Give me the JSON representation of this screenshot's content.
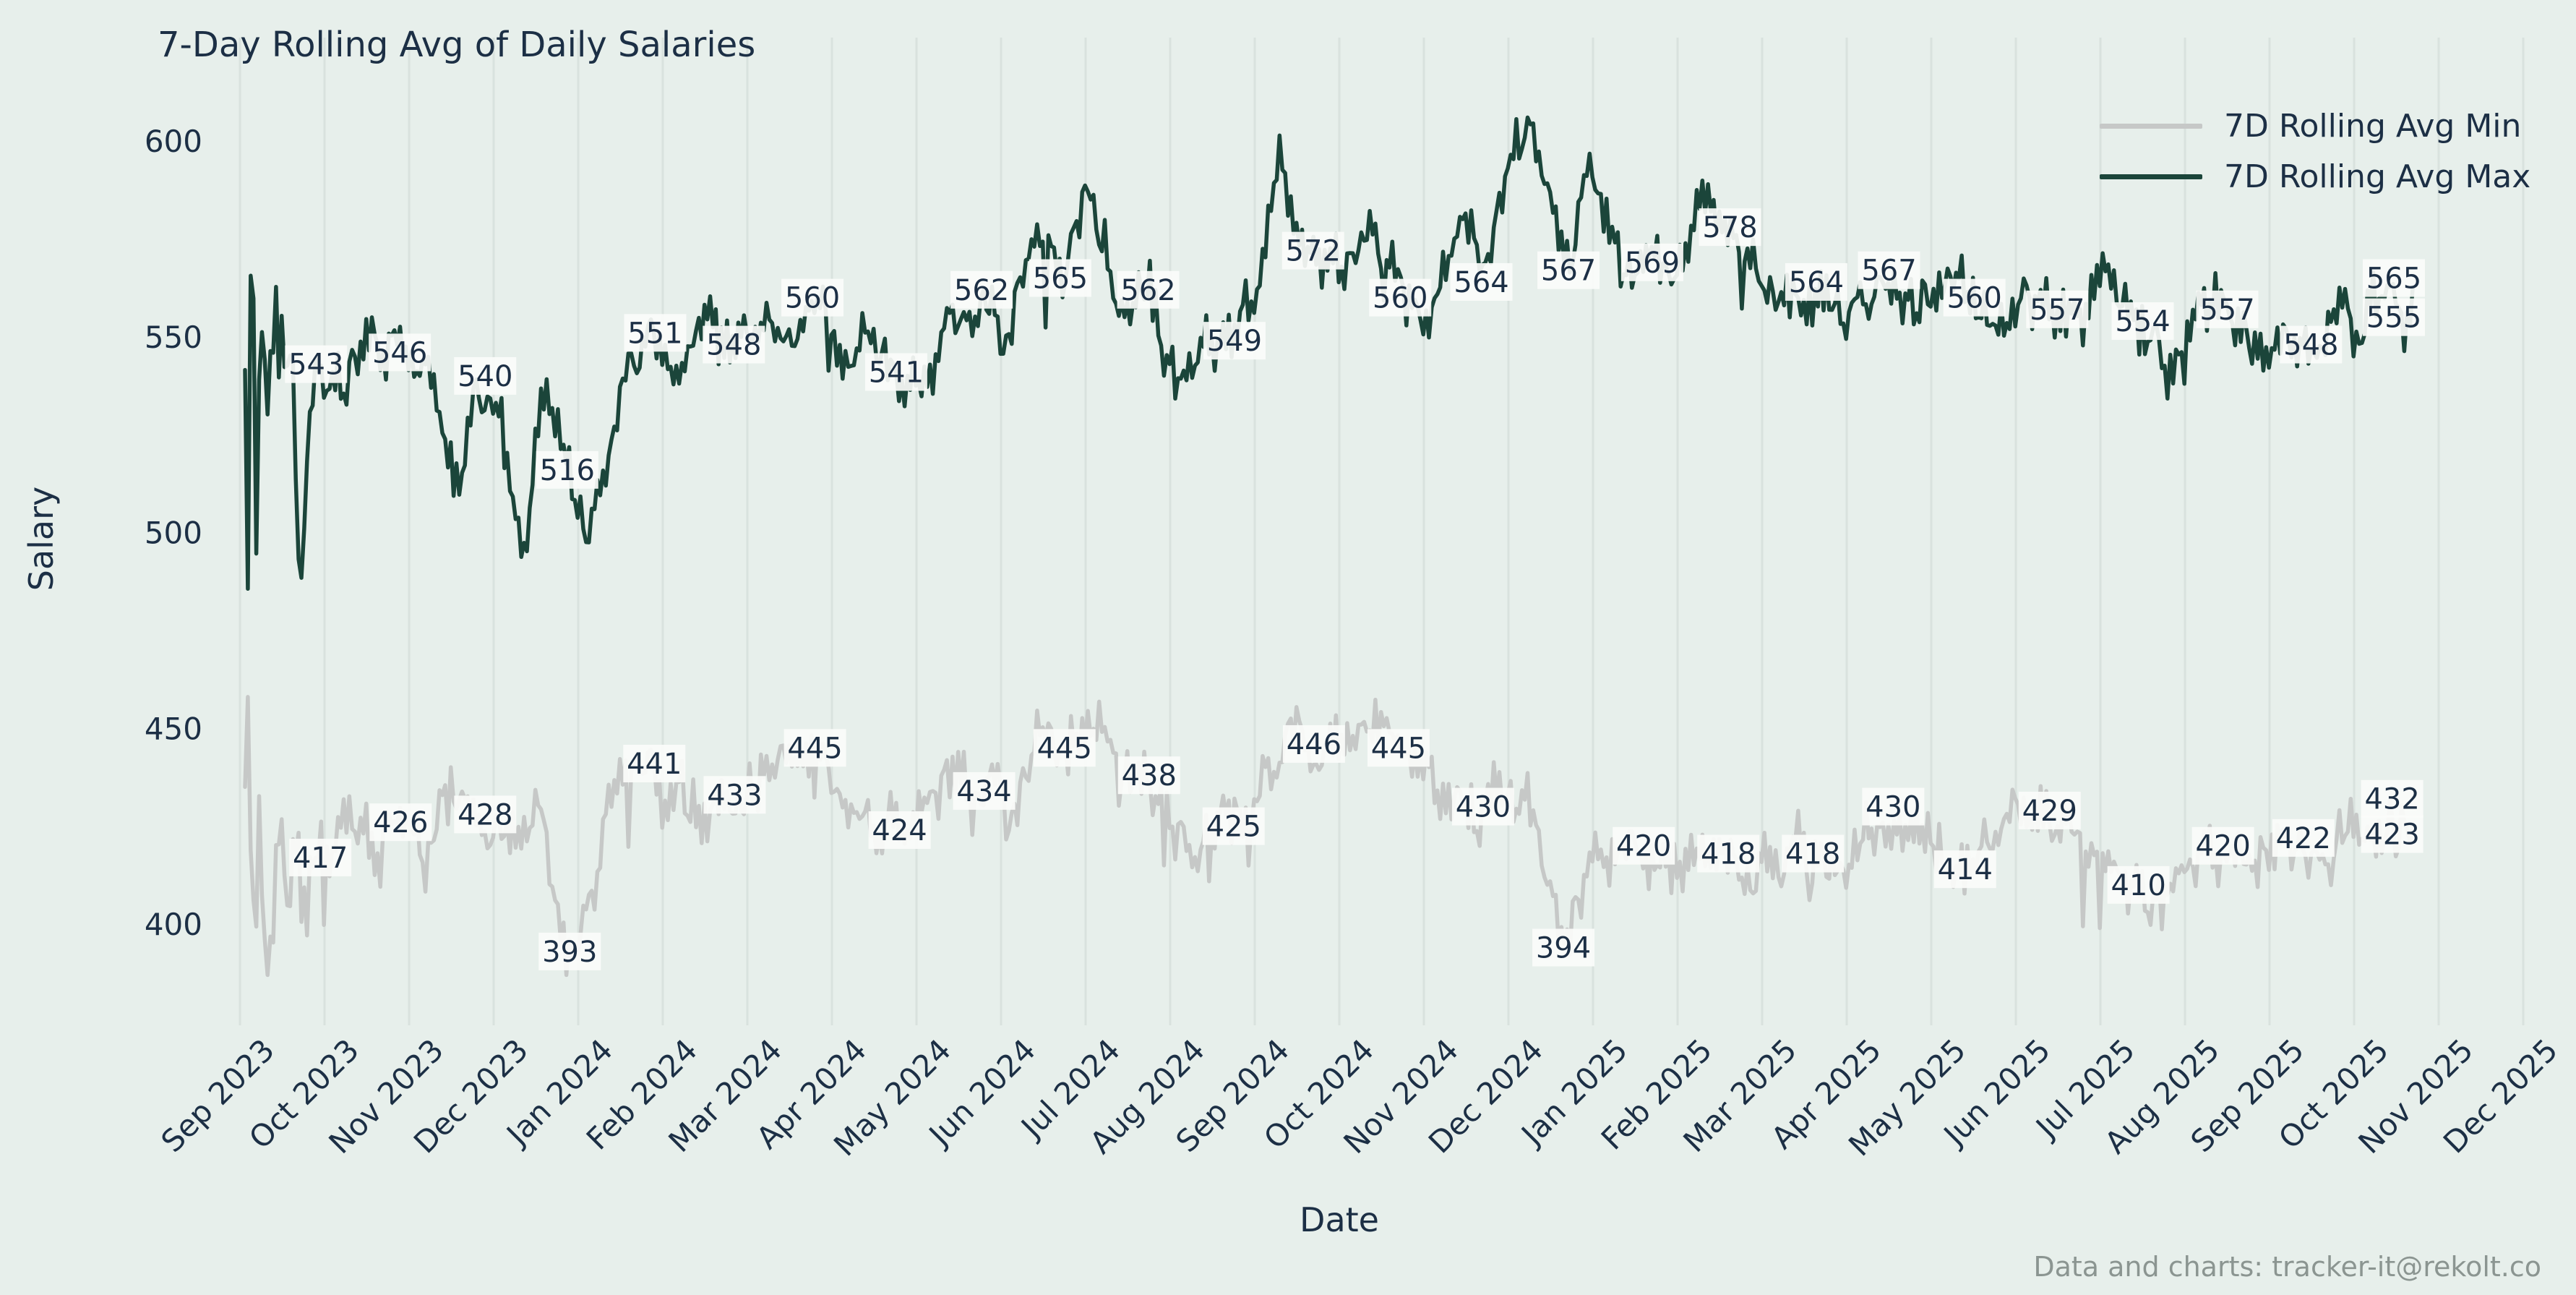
{
  "chart_data": {
    "type": "line",
    "title": "7-Day Rolling Avg of Daily Salaries",
    "xlabel": "Date",
    "ylabel": "Salary",
    "footer": "Data and charts: tracker-it@rekolt.co",
    "grid": "vertical-only",
    "background": "#e7efeb",
    "grid_color": "#d9e2de",
    "text_color": "#1c2f45",
    "annotation_bg": "#fbfcfa",
    "ylim": [
      383,
      612
    ],
    "y_ticks": [
      400,
      450,
      500,
      550,
      600
    ],
    "x_tick_labels": [
      "Sep 2023",
      "Oct 2023",
      "Nov 2023",
      "Dec 2023",
      "Jan 2024",
      "Feb 2024",
      "Mar 2024",
      "Apr 2024",
      "May 2024",
      "Jun 2024",
      "Jul 2024",
      "Aug 2024",
      "Sep 2024",
      "Oct 2024",
      "Nov 2024",
      "Dec 2024",
      "Jan 2025",
      "Feb 2025",
      "Mar 2025",
      "Apr 2025",
      "May 2025",
      "Jun 2025",
      "Jul 2025",
      "Aug 2025",
      "Sep 2025",
      "Oct 2025",
      "Nov 2025",
      "Dec 2025"
    ],
    "legend": {
      "position": "top-right",
      "entries": [
        {
          "label": "7D Rolling Avg Min",
          "color": "#c6c8c7"
        },
        {
          "label": "7D Rolling Avg Max",
          "color": "#1b453a"
        }
      ]
    },
    "series": [
      {
        "name": "7D Rolling Avg Min",
        "color": "#c6c8c7",
        "clamp": [
          387,
          458
        ],
        "point_labels": [
          [
            0.95,
            417
          ],
          [
            1.9,
            426
          ],
          [
            2.9,
            428
          ],
          [
            3.9,
            393
          ],
          [
            4.9,
            441
          ],
          [
            5.85,
            433
          ],
          [
            6.8,
            445
          ],
          [
            7.8,
            424
          ],
          [
            8.8,
            434
          ],
          [
            9.75,
            445
          ],
          [
            10.75,
            438
          ],
          [
            11.75,
            425
          ],
          [
            12.7,
            446
          ],
          [
            13.7,
            445
          ],
          [
            14.7,
            430
          ],
          [
            15.65,
            394
          ],
          [
            16.6,
            420
          ],
          [
            17.6,
            418
          ],
          [
            18.6,
            418
          ],
          [
            19.55,
            430
          ],
          [
            20.4,
            414
          ],
          [
            21.4,
            429
          ],
          [
            22.45,
            410
          ],
          [
            23.45,
            420
          ],
          [
            24.4,
            422
          ],
          [
            25.45,
            432
          ],
          [
            25.45,
            423
          ]
        ],
        "shape_anchors": [
          [
            0.06,
            440
          ],
          [
            0.1,
            457
          ],
          [
            0.14,
            420
          ],
          [
            0.18,
            393
          ],
          [
            0.22,
            445
          ],
          [
            0.28,
            405
          ],
          [
            0.35,
            389
          ],
          [
            0.45,
            415
          ],
          [
            0.55,
            408
          ],
          [
            0.65,
            418
          ],
          [
            0.75,
            398
          ],
          [
            0.85,
            412
          ],
          [
            0.95,
            417
          ],
          [
            1.3,
            428
          ],
          [
            1.6,
            420
          ],
          [
            1.9,
            426
          ],
          [
            2.2,
            418
          ],
          [
            2.5,
            432
          ],
          [
            2.9,
            428
          ],
          [
            3.2,
            420
          ],
          [
            3.5,
            430
          ],
          [
            3.9,
            393
          ],
          [
            4.2,
            416
          ],
          [
            4.5,
            442
          ],
          [
            4.9,
            441
          ],
          [
            5.2,
            432
          ],
          [
            5.5,
            426
          ],
          [
            5.85,
            433
          ],
          [
            6.2,
            440
          ],
          [
            6.5,
            446
          ],
          [
            6.8,
            445
          ],
          [
            7.1,
            436
          ],
          [
            7.45,
            424
          ],
          [
            7.8,
            424
          ],
          [
            8.1,
            432
          ],
          [
            8.45,
            440
          ],
          [
            8.8,
            434
          ],
          [
            9.1,
            428
          ],
          [
            9.45,
            448
          ],
          [
            9.75,
            445
          ],
          [
            10.1,
            452
          ],
          [
            10.4,
            436
          ],
          [
            10.75,
            438
          ],
          [
            11.1,
            424
          ],
          [
            11.4,
            420
          ],
          [
            11.75,
            425
          ],
          [
            12.1,
            436
          ],
          [
            12.4,
            448
          ],
          [
            12.7,
            446
          ],
          [
            13.0,
            444
          ],
          [
            13.35,
            452
          ],
          [
            13.7,
            445
          ],
          [
            14.0,
            440
          ],
          [
            14.35,
            430
          ],
          [
            14.7,
            430
          ],
          [
            15.0,
            436
          ],
          [
            15.3,
            428
          ],
          [
            15.65,
            394
          ],
          [
            15.8,
            404
          ],
          [
            16.1,
            420
          ],
          [
            16.6,
            420
          ],
          [
            16.9,
            414
          ],
          [
            17.2,
            420
          ],
          [
            17.6,
            418
          ],
          [
            17.9,
            412
          ],
          [
            18.2,
            416
          ],
          [
            18.6,
            418
          ],
          [
            18.9,
            410
          ],
          [
            19.2,
            422
          ],
          [
            19.55,
            430
          ],
          [
            19.9,
            426
          ],
          [
            20.4,
            414
          ],
          [
            20.7,
            420
          ],
          [
            21.0,
            428
          ],
          [
            21.4,
            429
          ],
          [
            21.7,
            424
          ],
          [
            22.0,
            416
          ],
          [
            22.45,
            410
          ],
          [
            22.7,
            404
          ],
          [
            23.0,
            412
          ],
          [
            23.45,
            420
          ],
          [
            23.7,
            418
          ],
          [
            24.0,
            416
          ],
          [
            24.4,
            422
          ],
          [
            24.7,
            418
          ],
          [
            25.0,
            424
          ],
          [
            25.2,
            418
          ],
          [
            25.45,
            430
          ],
          [
            25.55,
            423
          ],
          [
            25.72,
            421
          ]
        ]
      },
      {
        "name": "7D Rolling Avg Max",
        "color": "#1b453a",
        "clamp": [
          456,
          606
        ],
        "point_labels": [
          [
            0.9,
            543
          ],
          [
            1.89,
            546
          ],
          [
            2.9,
            540
          ],
          [
            3.87,
            516
          ],
          [
            4.91,
            551
          ],
          [
            5.84,
            548
          ],
          [
            6.77,
            560
          ],
          [
            7.76,
            541
          ],
          [
            8.77,
            562
          ],
          [
            9.7,
            565
          ],
          [
            10.74,
            562
          ],
          [
            11.76,
            549
          ],
          [
            12.69,
            572
          ],
          [
            13.72,
            560
          ],
          [
            14.68,
            564
          ],
          [
            15.71,
            567
          ],
          [
            16.7,
            569
          ],
          [
            17.62,
            578
          ],
          [
            18.64,
            564
          ],
          [
            19.5,
            567
          ],
          [
            20.51,
            560
          ],
          [
            21.49,
            557
          ],
          [
            22.5,
            554
          ],
          [
            23.5,
            557
          ],
          [
            24.49,
            548
          ],
          [
            25.47,
            565
          ],
          [
            25.47,
            555
          ]
        ],
        "shape_anchors": [
          [
            0.06,
            545
          ],
          [
            0.09,
            470
          ],
          [
            0.12,
            560
          ],
          [
            0.15,
            573
          ],
          [
            0.2,
            480
          ],
          [
            0.24,
            560
          ],
          [
            0.3,
            543
          ],
          [
            0.38,
            536
          ],
          [
            0.45,
            548
          ],
          [
            0.55,
            532
          ],
          [
            0.62,
            545
          ],
          [
            0.72,
            486
          ],
          [
            0.78,
            520
          ],
          [
            0.85,
            543
          ],
          [
            1.2,
            538
          ],
          [
            1.5,
            552
          ],
          [
            1.89,
            546
          ],
          [
            2.2,
            540
          ],
          [
            2.56,
            512
          ],
          [
            2.8,
            536
          ],
          [
            3.1,
            524
          ],
          [
            3.35,
            496
          ],
          [
            3.6,
            540
          ],
          [
            3.87,
            516
          ],
          [
            4.1,
            494
          ],
          [
            4.35,
            522
          ],
          [
            4.6,
            543
          ],
          [
            4.91,
            551
          ],
          [
            5.2,
            542
          ],
          [
            5.5,
            554
          ],
          [
            5.84,
            548
          ],
          [
            6.2,
            556
          ],
          [
            6.5,
            548
          ],
          [
            6.77,
            560
          ],
          [
            7.1,
            546
          ],
          [
            7.4,
            552
          ],
          [
            7.76,
            541
          ],
          [
            8.1,
            538
          ],
          [
            8.45,
            556
          ],
          [
            8.77,
            562
          ],
          [
            9.1,
            548
          ],
          [
            9.4,
            584
          ],
          [
            9.7,
            565
          ],
          [
            10.0,
            586
          ],
          [
            10.35,
            562
          ],
          [
            10.74,
            562
          ],
          [
            11.05,
            540
          ],
          [
            11.4,
            548
          ],
          [
            11.76,
            549
          ],
          [
            12.05,
            562
          ],
          [
            12.3,
            600
          ],
          [
            12.5,
            572
          ],
          [
            12.69,
            572
          ],
          [
            13.0,
            568
          ],
          [
            13.35,
            578
          ],
          [
            13.72,
            560
          ],
          [
            14.1,
            556
          ],
          [
            14.4,
            584
          ],
          [
            14.68,
            564
          ],
          [
            15.0,
            592
          ],
          [
            15.25,
            605
          ],
          [
            15.5,
            588
          ],
          [
            15.71,
            567
          ],
          [
            15.95,
            596
          ],
          [
            16.2,
            578
          ],
          [
            16.45,
            566
          ],
          [
            16.7,
            569
          ],
          [
            17.0,
            566
          ],
          [
            17.3,
            584
          ],
          [
            17.62,
            578
          ],
          [
            17.9,
            568
          ],
          [
            18.2,
            556
          ],
          [
            18.64,
            564
          ],
          [
            19.0,
            558
          ],
          [
            19.5,
            567
          ],
          [
            19.8,
            556
          ],
          [
            20.2,
            564
          ],
          [
            20.51,
            560
          ],
          [
            20.8,
            556
          ],
          [
            21.1,
            562
          ],
          [
            21.49,
            557
          ],
          [
            21.8,
            552
          ],
          [
            22.1,
            560
          ],
          [
            22.5,
            554
          ],
          [
            22.8,
            542
          ],
          [
            23.1,
            556
          ],
          [
            23.5,
            557
          ],
          [
            23.8,
            548
          ],
          [
            24.1,
            552
          ],
          [
            24.49,
            548
          ],
          [
            24.8,
            556
          ],
          [
            25.1,
            552
          ],
          [
            25.47,
            565
          ],
          [
            25.6,
            556
          ],
          [
            25.72,
            556
          ]
        ]
      }
    ]
  }
}
